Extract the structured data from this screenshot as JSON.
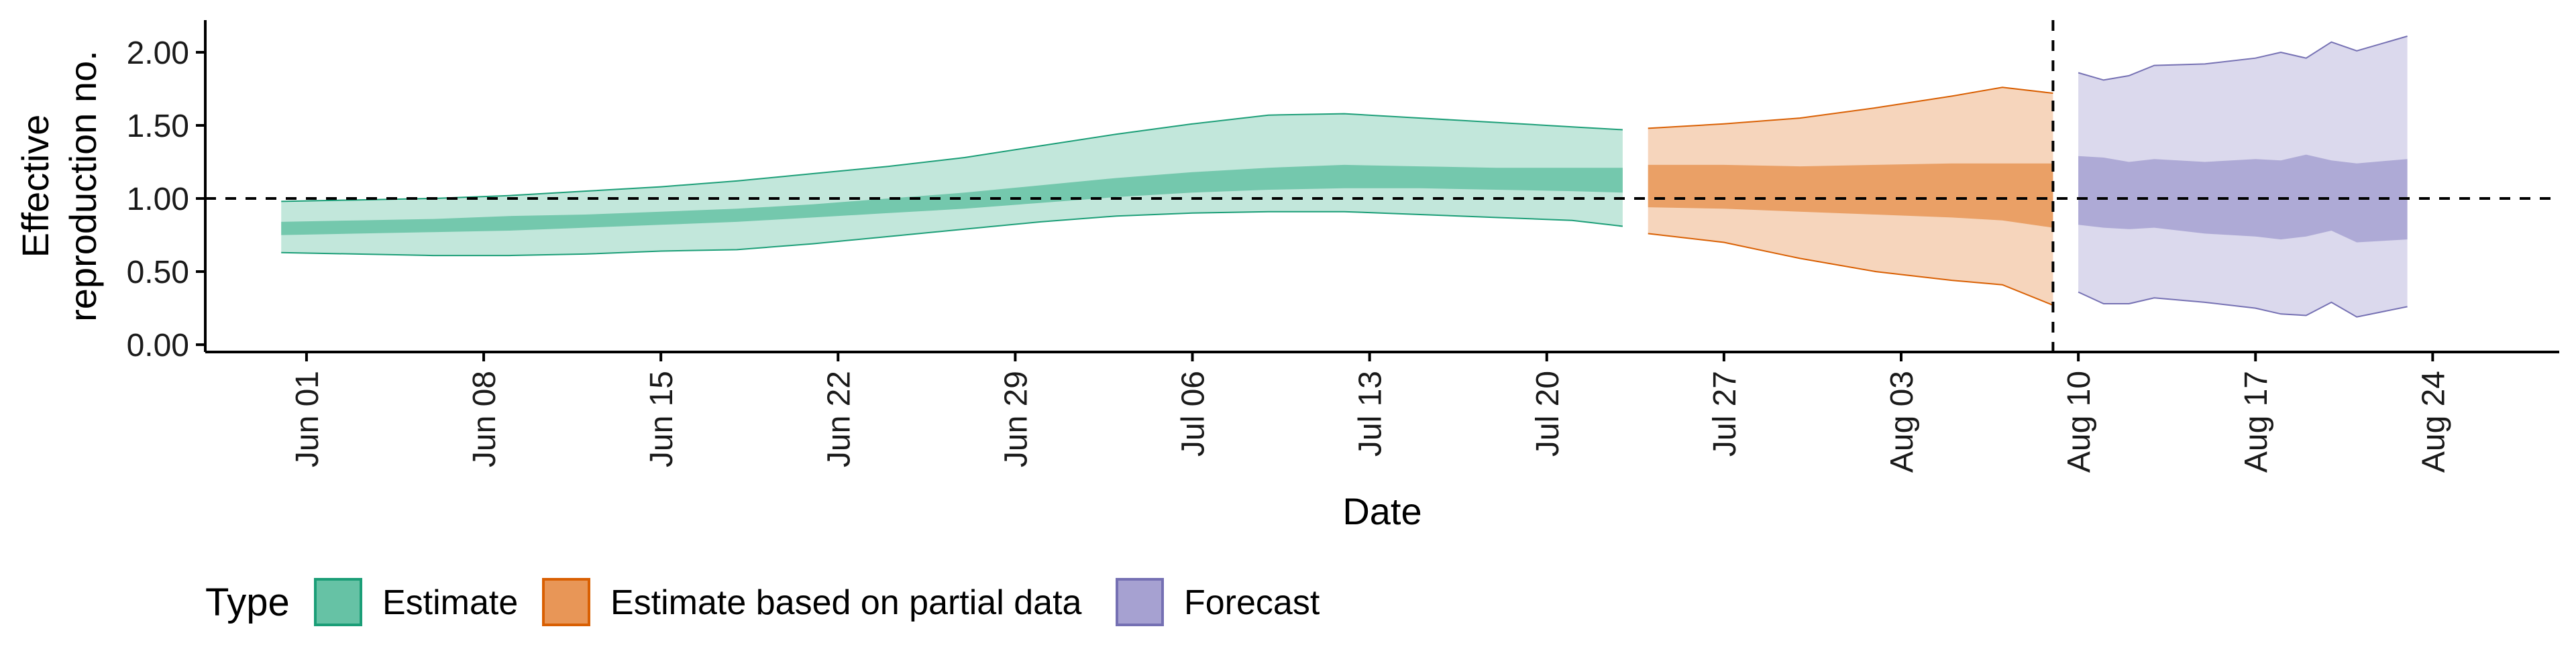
{
  "chart_data": {
    "type": "area",
    "xlabel": "Date",
    "ylabel_lines": [
      "Effective",
      "reproduction no."
    ],
    "ylim": [
      -0.05,
      2.22
    ],
    "xlim": [
      "2020-05-28",
      "2020-08-29"
    ],
    "y_ticks": [
      {
        "value": 0.0,
        "label": "0.00"
      },
      {
        "value": 0.5,
        "label": "0.50"
      },
      {
        "value": 1.0,
        "label": "1.00"
      },
      {
        "value": 1.5,
        "label": "1.50"
      },
      {
        "value": 2.0,
        "label": "2.00"
      }
    ],
    "x_ticks": [
      {
        "date": "2020-06-01",
        "label": "Jun 01"
      },
      {
        "date": "2020-06-08",
        "label": "Jun 08"
      },
      {
        "date": "2020-06-15",
        "label": "Jun 15"
      },
      {
        "date": "2020-06-22",
        "label": "Jun 22"
      },
      {
        "date": "2020-06-29",
        "label": "Jun 29"
      },
      {
        "date": "2020-07-06",
        "label": "Jul 06"
      },
      {
        "date": "2020-07-13",
        "label": "Jul 13"
      },
      {
        "date": "2020-07-20",
        "label": "Jul 20"
      },
      {
        "date": "2020-07-27",
        "label": "Jul 27"
      },
      {
        "date": "2020-08-03",
        "label": "Aug 03"
      },
      {
        "date": "2020-08-10",
        "label": "Aug 10"
      },
      {
        "date": "2020-08-17",
        "label": "Aug 17"
      },
      {
        "date": "2020-08-24",
        "label": "Aug 24"
      }
    ],
    "reference_lines": {
      "horizontal_y": 1.0,
      "vertical_date": "2020-08-09"
    },
    "legend": {
      "title": "Type",
      "position": "bottom-left"
    },
    "grid": false,
    "series": [
      {
        "name": "Estimate",
        "fill": "#66c2a5",
        "stroke": "#1b9e77",
        "points": [
          {
            "date": "2020-05-31",
            "lo90": 0.63,
            "lo50": 0.75,
            "hi50": 0.84,
            "hi90": 0.98
          },
          {
            "date": "2020-06-03",
            "lo90": 0.62,
            "lo50": 0.76,
            "hi50": 0.85,
            "hi90": 0.99
          },
          {
            "date": "2020-06-06",
            "lo90": 0.61,
            "lo50": 0.77,
            "hi50": 0.86,
            "hi90": 1.0
          },
          {
            "date": "2020-06-09",
            "lo90": 0.61,
            "lo50": 0.78,
            "hi50": 0.88,
            "hi90": 1.02
          },
          {
            "date": "2020-06-12",
            "lo90": 0.62,
            "lo50": 0.8,
            "hi50": 0.89,
            "hi90": 1.05
          },
          {
            "date": "2020-06-15",
            "lo90": 0.64,
            "lo50": 0.82,
            "hi50": 0.91,
            "hi90": 1.08
          },
          {
            "date": "2020-06-18",
            "lo90": 0.65,
            "lo50": 0.84,
            "hi50": 0.93,
            "hi90": 1.12
          },
          {
            "date": "2020-06-21",
            "lo90": 0.69,
            "lo50": 0.87,
            "hi50": 0.96,
            "hi90": 1.17
          },
          {
            "date": "2020-06-24",
            "lo90": 0.74,
            "lo50": 0.9,
            "hi50": 1.0,
            "hi90": 1.22
          },
          {
            "date": "2020-06-27",
            "lo90": 0.79,
            "lo50": 0.93,
            "hi50": 1.04,
            "hi90": 1.28
          },
          {
            "date": "2020-06-30",
            "lo90": 0.84,
            "lo50": 0.97,
            "hi50": 1.09,
            "hi90": 1.36
          },
          {
            "date": "2020-07-03",
            "lo90": 0.88,
            "lo50": 1.01,
            "hi50": 1.14,
            "hi90": 1.44
          },
          {
            "date": "2020-07-06",
            "lo90": 0.9,
            "lo50": 1.04,
            "hi50": 1.18,
            "hi90": 1.51
          },
          {
            "date": "2020-07-09",
            "lo90": 0.91,
            "lo50": 1.06,
            "hi50": 1.21,
            "hi90": 1.57
          },
          {
            "date": "2020-07-12",
            "lo90": 0.91,
            "lo50": 1.07,
            "hi50": 1.23,
            "hi90": 1.58
          },
          {
            "date": "2020-07-15",
            "lo90": 0.89,
            "lo50": 1.07,
            "hi50": 1.22,
            "hi90": 1.55
          },
          {
            "date": "2020-07-18",
            "lo90": 0.87,
            "lo50": 1.06,
            "hi50": 1.21,
            "hi90": 1.52
          },
          {
            "date": "2020-07-21",
            "lo90": 0.85,
            "lo50": 1.05,
            "hi50": 1.21,
            "hi90": 1.49
          },
          {
            "date": "2020-07-23",
            "lo90": 0.81,
            "lo50": 1.04,
            "hi50": 1.21,
            "hi90": 1.47
          }
        ]
      },
      {
        "name": "Estimate based on partial data",
        "fill": "#e89657",
        "stroke": "#d95f02",
        "points": [
          {
            "date": "2020-07-24",
            "lo90": 0.76,
            "lo50": 0.94,
            "hi50": 1.23,
            "hi90": 1.48
          },
          {
            "date": "2020-07-27",
            "lo90": 0.7,
            "lo50": 0.93,
            "hi50": 1.23,
            "hi90": 1.51
          },
          {
            "date": "2020-07-30",
            "lo90": 0.59,
            "lo50": 0.91,
            "hi50": 1.22,
            "hi90": 1.55
          },
          {
            "date": "2020-08-02",
            "lo90": 0.5,
            "lo50": 0.89,
            "hi50": 1.23,
            "hi90": 1.62
          },
          {
            "date": "2020-08-05",
            "lo90": 0.44,
            "lo50": 0.87,
            "hi50": 1.24,
            "hi90": 1.7
          },
          {
            "date": "2020-08-07",
            "lo90": 0.41,
            "lo50": 0.85,
            "hi50": 1.24,
            "hi90": 1.76
          },
          {
            "date": "2020-08-09",
            "lo90": 0.27,
            "lo50": 0.8,
            "hi50": 1.24,
            "hi90": 1.72
          }
        ]
      },
      {
        "name": "Forecast",
        "fill": "#a6a1d1",
        "stroke": "#7570b3",
        "points": [
          {
            "date": "2020-08-10",
            "lo90": 0.36,
            "lo50": 0.82,
            "hi50": 1.29,
            "hi90": 1.86
          },
          {
            "date": "2020-08-11",
            "lo90": 0.28,
            "lo50": 0.8,
            "hi50": 1.28,
            "hi90": 1.81
          },
          {
            "date": "2020-08-12",
            "lo90": 0.28,
            "lo50": 0.79,
            "hi50": 1.25,
            "hi90": 1.84
          },
          {
            "date": "2020-08-13",
            "lo90": 0.32,
            "lo50": 0.8,
            "hi50": 1.27,
            "hi90": 1.91
          },
          {
            "date": "2020-08-15",
            "lo90": 0.29,
            "lo50": 0.76,
            "hi50": 1.25,
            "hi90": 1.92
          },
          {
            "date": "2020-08-17",
            "lo90": 0.25,
            "lo50": 0.74,
            "hi50": 1.27,
            "hi90": 1.96
          },
          {
            "date": "2020-08-18",
            "lo90": 0.21,
            "lo50": 0.72,
            "hi50": 1.26,
            "hi90": 2.0
          },
          {
            "date": "2020-08-19",
            "lo90": 0.2,
            "lo50": 0.74,
            "hi50": 1.3,
            "hi90": 1.96
          },
          {
            "date": "2020-08-20",
            "lo90": 0.29,
            "lo50": 0.78,
            "hi50": 1.26,
            "hi90": 2.07
          },
          {
            "date": "2020-08-21",
            "lo90": 0.19,
            "lo50": 0.7,
            "hi50": 1.24,
            "hi90": 2.01
          },
          {
            "date": "2020-08-23",
            "lo90": 0.26,
            "lo50": 0.72,
            "hi50": 1.27,
            "hi90": 2.11
          }
        ]
      }
    ]
  }
}
